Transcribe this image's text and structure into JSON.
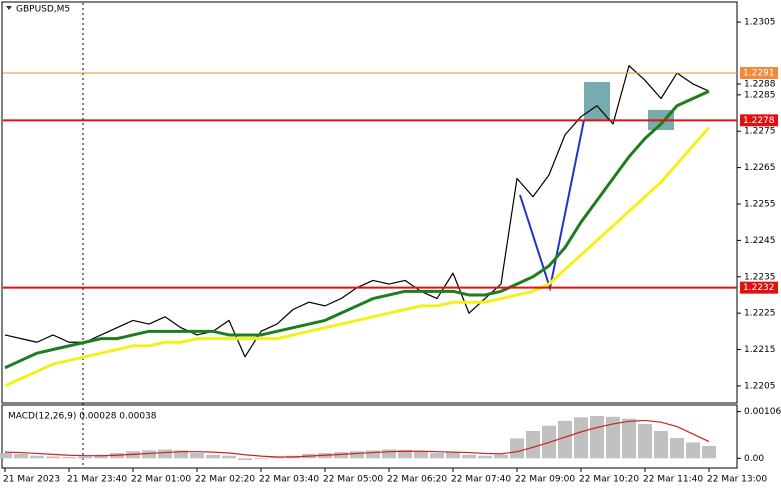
{
  "chart_data": [
    {
      "type": "line",
      "title": "GBPUSD,M5",
      "categories": [
        "21 Mar 2023",
        null,
        null,
        null,
        "21 Mar 23:40",
        null,
        null,
        null,
        "22 Mar 01:00",
        null,
        null,
        null,
        "22 Mar 02:20",
        null,
        null,
        null,
        "22 Mar 03:40",
        null,
        null,
        null,
        "22 Mar 05:00",
        null,
        null,
        null,
        "22 Mar 06:20",
        null,
        null,
        null,
        "22 Mar 07:40",
        null,
        null,
        null,
        "22 Mar 09:00",
        null,
        null,
        null,
        "22 Mar 10:20",
        null,
        null,
        null,
        "22 Mar 11:40",
        null,
        null,
        null,
        "22 Mar 13:00"
      ],
      "series": [
        {
          "color": "#000000",
          "width": 1.2,
          "values": [
            1.2219,
            1.2218,
            1.2217,
            1.2219,
            1.2217,
            1.2217,
            1.2219,
            1.2221,
            1.2223,
            1.2222,
            1.2224,
            1.2221,
            1.2219,
            1.222,
            1.2223,
            1.2213,
            1.222,
            1.2222,
            1.2226,
            1.2228,
            1.2227,
            1.2229,
            1.2232,
            1.2234,
            1.2233,
            1.2234,
            1.2231,
            1.2229,
            1.2236,
            1.2225,
            1.2229,
            1.2233,
            1.2262,
            1.2257,
            1.2263,
            1.2274,
            1.2279,
            1.2282,
            1.2277,
            1.2293,
            1.2289,
            1.2284,
            1.2291,
            1.2288,
            1.2286
          ]
        },
        {
          "color": "#1e7d1e",
          "width": 3,
          "values": [
            1.221,
            1.2212,
            1.2214,
            1.2215,
            1.2216,
            1.2217,
            1.2218,
            1.2218,
            1.2219,
            1.222,
            1.222,
            1.222,
            1.222,
            1.222,
            1.2219,
            1.2219,
            1.2219,
            1.222,
            1.2221,
            1.2222,
            1.2223,
            1.2225,
            1.2227,
            1.2229,
            1.223,
            1.2231,
            1.2231,
            1.2231,
            1.2231,
            1.223,
            1.223,
            1.2231,
            1.2233,
            1.2235,
            1.2238,
            1.2243,
            1.225,
            1.2256,
            1.2262,
            1.2268,
            1.2273,
            1.2277,
            1.2282,
            1.2284,
            1.2286
          ]
        },
        {
          "color": "#f2f21a",
          "width": 3,
          "values": [
            1.2205,
            1.2207,
            1.2209,
            1.2211,
            1.2212,
            1.2213,
            1.2214,
            1.2215,
            1.2216,
            1.2216,
            1.2217,
            1.2217,
            1.2218,
            1.2218,
            1.2218,
            1.2218,
            1.2218,
            1.2218,
            1.2219,
            1.222,
            1.2221,
            1.2222,
            1.2223,
            1.2224,
            1.2225,
            1.2226,
            1.2227,
            1.2227,
            1.2228,
            1.2228,
            1.2228,
            1.2229,
            1.223,
            1.2231,
            1.2233,
            1.2237,
            1.2241,
            1.2245,
            1.2249,
            1.2253,
            1.2257,
            1.2261,
            1.2266,
            1.2271,
            1.2276
          ]
        }
      ],
      "ylim": [
        1.22003,
        1.23097
      ],
      "yticks": [
        1.2305,
        1.2285,
        1.2275,
        1.2265,
        1.2255,
        1.2245,
        1.2235,
        1.2225,
        1.2215,
        1.2205
      ],
      "levels": [
        {
          "value": 1.2291,
          "color": "#f08a3c"
        },
        {
          "value": 1.2278,
          "color": "#e01010"
        },
        {
          "value": 1.2232,
          "color": "#e01010"
        }
      ],
      "current_price": 1.2288
    },
    {
      "type": "macd",
      "title": "MACD(12,26,9) 0.00028 0.00038",
      "series": [
        {
          "style": "bar",
          "color": "#c0c0c0",
          "values": [
            0.00012,
            0.0001,
            6e-05,
            4e-05,
            3e-05,
            4e-05,
            8e-05,
            0.00012,
            0.00016,
            0.00018,
            0.0002,
            0.00018,
            0.00012,
            8e-05,
            6e-05,
            -4e-05,
            -2e-05,
            2e-05,
            6e-05,
            0.0001,
            0.00012,
            0.00014,
            0.00016,
            0.00018,
            0.0002,
            0.00019,
            0.00016,
            0.00012,
            0.00014,
            8e-05,
            6e-05,
            8e-05,
            0.00045,
            0.00062,
            0.00074,
            0.00085,
            0.00093,
            0.00096,
            0.00094,
            0.0009,
            0.00078,
            0.00062,
            0.00046,
            0.00036,
            0.00028
          ]
        },
        {
          "style": "line",
          "color": "#d02020",
          "values": [
            0.00014,
            0.00013,
            0.00011,
            9e-05,
            7e-05,
            6e-05,
            6e-05,
            7e-05,
            9e-05,
            0.00011,
            0.00013,
            0.00015,
            0.00015,
            0.00014,
            0.00012,
            8e-05,
            5e-05,
            3e-05,
            3e-05,
            5e-05,
            7e-05,
            9e-05,
            0.00011,
            0.00013,
            0.00015,
            0.00016,
            0.00016,
            0.00015,
            0.00014,
            0.00013,
            0.00011,
            0.0001,
            0.00015,
            0.00025,
            0.00036,
            0.00048,
            0.0006,
            0.0007,
            0.00078,
            0.00084,
            0.00086,
            0.00082,
            0.00072,
            0.00055,
            0.00038
          ]
        }
      ],
      "ylim": [
        -0.00022,
        0.00121
      ],
      "yticks": [
        {
          "value": 0.00106,
          "label": "0.00106"
        },
        {
          "value": 0,
          "label": "0.00"
        }
      ]
    }
  ]
}
